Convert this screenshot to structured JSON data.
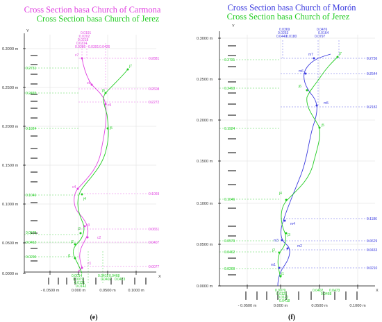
{
  "colors": {
    "magenta": "#e040e0",
    "green": "#22cc22",
    "blue": "#3a3adf",
    "grid": "#dddddd",
    "axis": "#000000"
  },
  "panel_e": {
    "caption": "(e)",
    "title_1": "Cross Section basa Church of Carmona",
    "title_2": "Cross Section basa Church of Jerez",
    "y_axis_letter": "Y",
    "x_axis_letter": "X",
    "y_ticks": [
      "0.3000 m",
      "0.2500 m",
      "0.2000 m",
      "0.1500 m",
      "0.1000 m",
      "0.0500 m",
      "0.0000 m"
    ],
    "x_ticks": [
      "- 0.0500 m",
      "0.000 m",
      "0.0500 m",
      "0.1000 m"
    ],
    "points_magenta": [
      "c7",
      "c6",
      "c5",
      "c4",
      "c3",
      "c2",
      "c1"
    ],
    "points_green": [
      "j7",
      "j6",
      "j5",
      "j4",
      "j3",
      "j2",
      "j1"
    ],
    "dims_right": [
      "0.2881",
      "0.2608",
      "0.2272",
      "0.1069",
      "0.0651",
      "0.0407",
      "0.0077"
    ],
    "dims_left": [
      "0.2731",
      "0.2493",
      "0.1924",
      "0.1046",
      "0.0579",
      "0.0462",
      "0.0200"
    ],
    "dims_top": [
      "0.0191",
      "0.0202",
      "0.0218",
      "0.0314",
      "0.0286",
      "0.0391",
      "0.0426"
    ],
    "dims_bottom": [
      "0.0014",
      "0.0079",
      "0.0121",
      "0.0142",
      "0.0418",
      "0.0402",
      "0.0468",
      "0.0473"
    ]
  },
  "panel_f": {
    "caption": "(f)",
    "title_1": "Cross Section basa Church of Morón",
    "title_2": "Cross Section basa Church of Jerez",
    "y_axis_letter": "Y",
    "x_axis_letter": "X",
    "y_ticks": [
      "0.3000 m",
      "0.2500 m",
      "0.2000 m",
      "0.1500 m",
      "0.1000 m",
      "0.0500 m",
      "0.0000 m"
    ],
    "x_ticks": [
      "- 0.0500 m",
      "0.000 m",
      "0.0500 m",
      "0.1000 m"
    ],
    "points_blue": [
      "m7",
      "m6",
      "m5",
      "m4",
      "m3",
      "m2",
      "m1"
    ],
    "points_green": [
      "j7",
      "j6",
      "j5",
      "j4",
      "j3",
      "j2",
      "j1"
    ],
    "dims_right": [
      "0.2736",
      "0.2544",
      "0.2182",
      "0.1186",
      "0.0629",
      "0.0433",
      "0.0210"
    ],
    "dims_left": [
      "0.2731",
      "0.2493",
      "0.1924",
      "0.1046",
      "0.0579",
      "0.0462",
      "0.0200"
    ],
    "dims_top": [
      "0.0369",
      "0.0253",
      "0.0440",
      "0.0180",
      "0.0476",
      "0.0164",
      "0.0797"
    ],
    "dims_bottom": [
      "0.0079",
      "0.0121",
      "0.0142",
      "0.0418",
      "0.0402",
      "0.0468",
      "0.0473"
    ]
  }
}
